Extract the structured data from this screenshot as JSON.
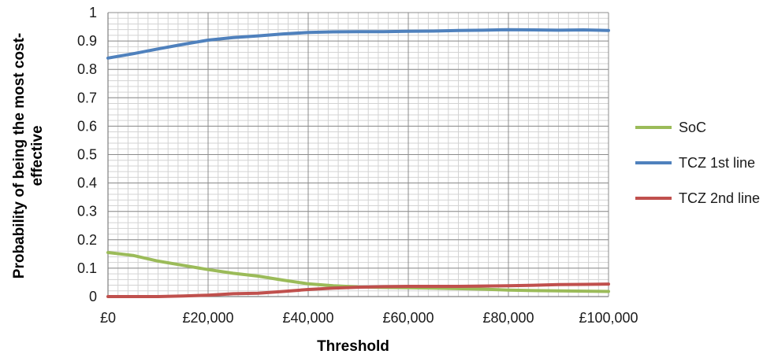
{
  "chart_data": {
    "type": "line",
    "xlabel": "Threshold",
    "ylabel_lines": [
      "Probability of being the most cost-",
      "effective"
    ],
    "xlim": [
      0,
      100000
    ],
    "ylim": [
      0,
      1
    ],
    "x_ticks": [
      0,
      20000,
      40000,
      60000,
      80000,
      100000
    ],
    "x_tick_labels": [
      "£0",
      "£20,000",
      "£40,000",
      "£60,000",
      "£80,000",
      "£100,000"
    ],
    "y_ticks": [
      0,
      0.1,
      0.2,
      0.3,
      0.4,
      0.5,
      0.6,
      0.7,
      0.8,
      0.9,
      1
    ],
    "y_tick_labels": [
      "0",
      "0.1",
      "0.2",
      "0.3",
      "0.4",
      "0.5",
      "0.6",
      "0.7",
      "0.8",
      "0.9",
      "1"
    ],
    "grid": true,
    "legend_position": "right",
    "series": [
      {
        "name": "SoC",
        "color": "#9bbb59",
        "x": [
          0,
          5000,
          10000,
          15000,
          20000,
          25000,
          30000,
          35000,
          40000,
          45000,
          50000,
          55000,
          60000,
          65000,
          70000,
          75000,
          80000,
          85000,
          90000,
          95000,
          100000
        ],
        "y": [
          0.155,
          0.145,
          0.125,
          0.11,
          0.095,
          0.082,
          0.072,
          0.058,
          0.045,
          0.038,
          0.034,
          0.032,
          0.031,
          0.03,
          0.028,
          0.026,
          0.023,
          0.021,
          0.02,
          0.019,
          0.018
        ]
      },
      {
        "name": "TCZ 1st line",
        "color": "#4f81bd",
        "x": [
          0,
          5000,
          10000,
          15000,
          20000,
          25000,
          30000,
          35000,
          40000,
          45000,
          50000,
          55000,
          60000,
          65000,
          70000,
          75000,
          80000,
          85000,
          90000,
          95000,
          100000
        ],
        "y": [
          0.84,
          0.855,
          0.872,
          0.888,
          0.903,
          0.912,
          0.918,
          0.925,
          0.93,
          0.932,
          0.933,
          0.933,
          0.934,
          0.935,
          0.937,
          0.938,
          0.94,
          0.939,
          0.938,
          0.939,
          0.937
        ]
      },
      {
        "name": "TCZ 2nd line",
        "color": "#c0504d",
        "x": [
          0,
          5000,
          10000,
          15000,
          20000,
          25000,
          30000,
          35000,
          40000,
          45000,
          50000,
          55000,
          60000,
          65000,
          70000,
          75000,
          80000,
          85000,
          90000,
          95000,
          100000
        ],
        "y": [
          0.0,
          0.0,
          0.0,
          0.002,
          0.005,
          0.01,
          0.012,
          0.018,
          0.025,
          0.03,
          0.033,
          0.035,
          0.036,
          0.036,
          0.036,
          0.037,
          0.038,
          0.04,
          0.042,
          0.043,
          0.044
        ]
      }
    ]
  }
}
